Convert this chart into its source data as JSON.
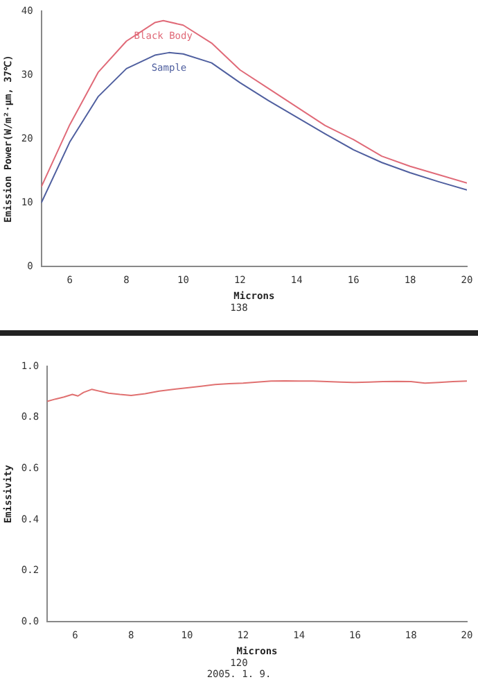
{
  "chart_data": [
    {
      "type": "line",
      "xlabel": "Microns",
      "ylabel": "Emission Power(W/m²·μm, 37℃)",
      "annotations": [
        "138"
      ],
      "xlim": [
        5,
        20
      ],
      "xticks": [
        6,
        8,
        10,
        12,
        14,
        16,
        18,
        20
      ],
      "ylim": [
        0,
        40
      ],
      "yticks": [
        0,
        10,
        20,
        30,
        40
      ],
      "grid": false,
      "legend": false,
      "marker": "none",
      "line_style": "solid",
      "series": [
        {
          "name": "Black Body",
          "color": "#e06a78",
          "x": [
            5,
            6,
            7,
            8,
            9,
            9.3,
            10,
            11,
            12,
            13,
            14,
            15,
            16,
            17,
            18,
            19,
            20
          ],
          "values": [
            12.5,
            22.2,
            30.4,
            35.3,
            38.2,
            38.5,
            37.8,
            35,
            30.8,
            27.9,
            25,
            22.1,
            19.9,
            17.3,
            15.7,
            14.4,
            13.1
          ]
        },
        {
          "name": "Sample",
          "color": "#4f5f9f",
          "x": [
            5,
            6,
            7,
            8,
            9,
            9.5,
            10,
            11,
            12,
            13,
            14,
            15,
            16,
            17,
            18,
            19,
            20
          ],
          "values": [
            10,
            19.5,
            26.6,
            31,
            33.1,
            33.5,
            33.3,
            31.9,
            28.8,
            26,
            23.4,
            20.8,
            18.3,
            16.3,
            14.7,
            13.3,
            12
          ]
        }
      ]
    },
    {
      "type": "line",
      "xlabel": "Microns",
      "ylabel": "Emissivity",
      "annotations": [
        "120",
        "2005. 1. 9."
      ],
      "xlim": [
        5,
        20
      ],
      "xticks": [
        6,
        8,
        10,
        12,
        14,
        16,
        18,
        20
      ],
      "ylim": [
        0,
        1
      ],
      "yticks": [
        {
          "value": 0,
          "label": "0.0"
        },
        0.2,
        0.4,
        0.6,
        0.8,
        {
          "value": 1,
          "label": "1.0"
        }
      ],
      "grid": false,
      "legend": false,
      "marker": "none",
      "line_style": "solid",
      "series": [
        {
          "color": "#e07070",
          "x": [
            5,
            5.3,
            5.6,
            5.9,
            6.1,
            6.3,
            6.6,
            6.9,
            7.2,
            7.6,
            8,
            8.5,
            9,
            9.5,
            10,
            10.5,
            11,
            11.5,
            12,
            12.5,
            13,
            13.5,
            14,
            14.5,
            15,
            15.5,
            16,
            16.5,
            17,
            17.5,
            18,
            18.5,
            19,
            19.5,
            20
          ],
          "values": [
            0.863,
            0.872,
            0.88,
            0.89,
            0.884,
            0.898,
            0.91,
            0.902,
            0.895,
            0.89,
            0.886,
            0.893,
            0.903,
            0.91,
            0.916,
            0.922,
            0.929,
            0.932,
            0.934,
            0.938,
            0.942,
            0.943,
            0.942,
            0.942,
            0.94,
            0.938,
            0.937,
            0.938,
            0.94,
            0.941,
            0.94,
            0.934,
            0.937,
            0.94,
            0.942
          ]
        }
      ]
    }
  ]
}
